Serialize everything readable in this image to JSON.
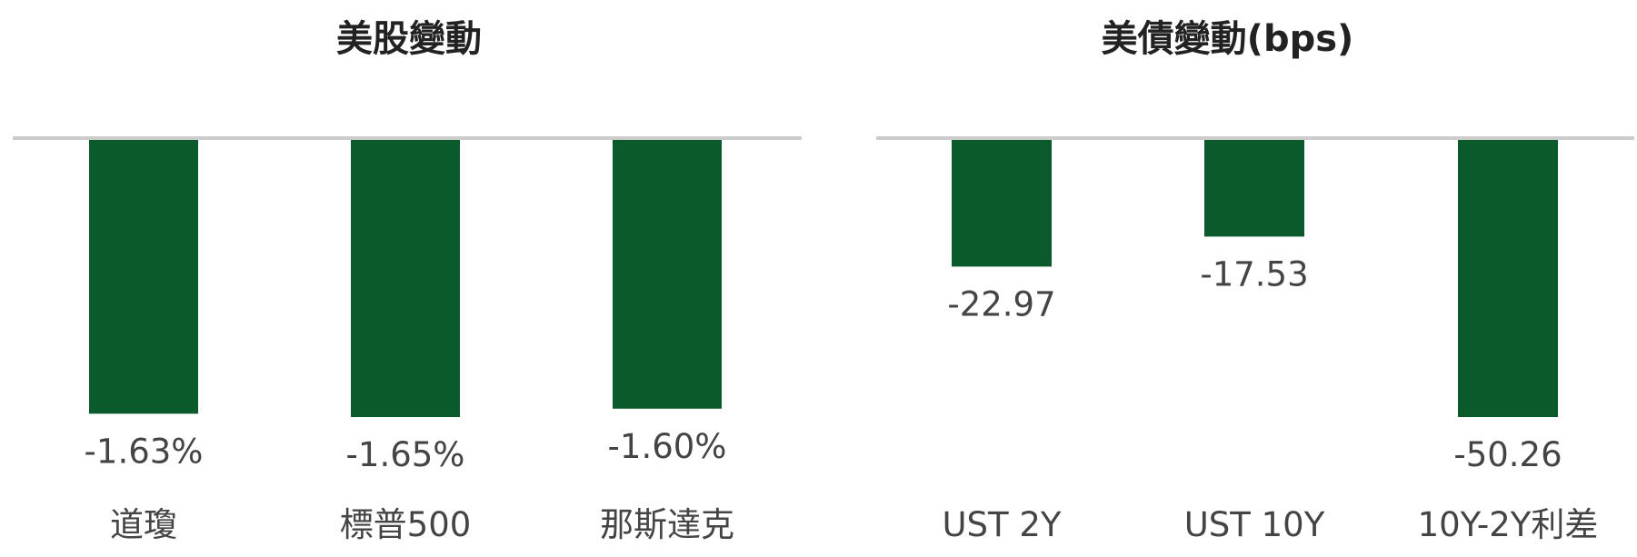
{
  "chart_data": [
    {
      "type": "bar",
      "title": "美股變動",
      "categories": [
        "道瓊",
        "標普500",
        "那斯達克"
      ],
      "values": [
        -1.63,
        -1.65,
        -1.6
      ],
      "value_labels": [
        "-1.63%",
        "-1.65%",
        "-1.60%"
      ],
      "xlabel": "",
      "ylabel": "",
      "grid": false,
      "bar_color": "#0a5a2b",
      "baseline_color": "#cccccc"
    },
    {
      "type": "bar",
      "title": "美債變動(bps)",
      "categories": [
        "UST 2Y",
        "UST 10Y",
        "10Y-2Y利差"
      ],
      "values": [
        -22.97,
        -17.53,
        -50.26
      ],
      "value_labels": [
        "-22.97",
        "-17.53",
        "-50.26"
      ],
      "xlabel": "",
      "ylabel": "",
      "grid": false,
      "bar_color": "#0a5a2b",
      "baseline_color": "#cccccc"
    }
  ]
}
